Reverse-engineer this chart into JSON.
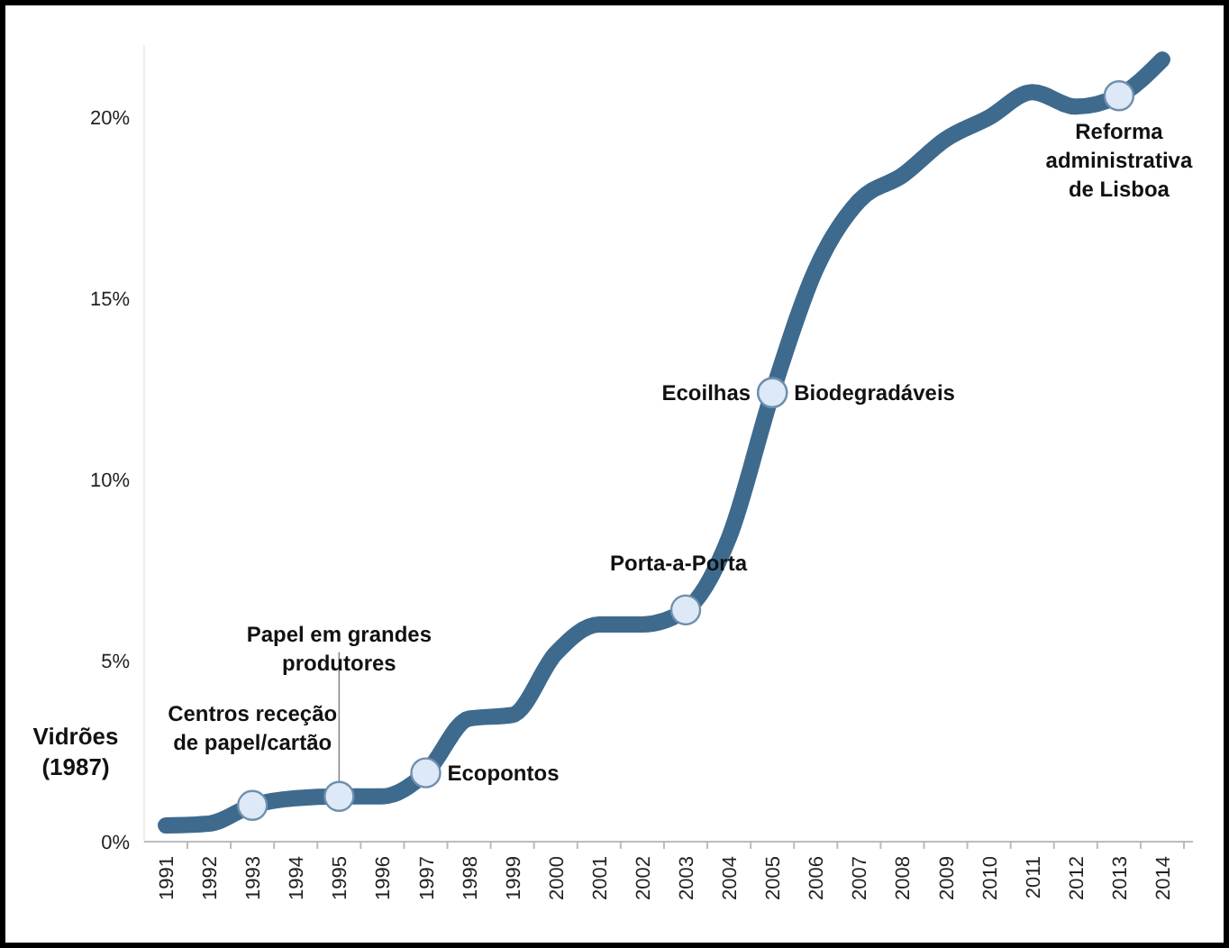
{
  "chart_data": {
    "type": "line",
    "categories": [
      "1991",
      "1992",
      "1993",
      "1994",
      "1995",
      "1996",
      "1997",
      "1998",
      "1999",
      "2000",
      "2001",
      "2002",
      "2003",
      "2004",
      "2005",
      "2006",
      "2007",
      "2008",
      "2009",
      "2010",
      "2011",
      "2012",
      "2013",
      "2014"
    ],
    "series": [
      {
        "color": "#3e6a8e",
        "values": [
          0.45,
          0.5,
          1.0,
          1.2,
          1.25,
          1.25,
          1.9,
          3.4,
          3.5,
          5.2,
          6.0,
          6.0,
          6.4,
          8.4,
          12.4,
          15.8,
          17.7,
          18.4,
          19.4,
          20.0,
          20.7,
          20.3,
          20.6,
          21.6
        ]
      }
    ],
    "ylim": [
      0,
      22
    ],
    "yticks": [
      {
        "value": 0,
        "label": "0%"
      },
      {
        "value": 5,
        "label": "5%"
      },
      {
        "value": 10,
        "label": "10%"
      },
      {
        "value": 15,
        "label": "15%"
      },
      {
        "value": 20,
        "label": "20%"
      }
    ],
    "line_style": "solid",
    "annotations": [
      "Vidrões\n(1987)",
      {
        "text": "Centros receção\nde papel/cartão",
        "x": "1993",
        "y": 1.0
      },
      {
        "text": "Papel em grandes\nprodutores",
        "x": "1995",
        "y": 1.25
      },
      {
        "text": "Ecopontos",
        "x": "1997",
        "y": 1.9
      },
      {
        "text": "Porta-a-Porta",
        "x": "2003",
        "y": 6.4
      },
      {
        "text": "Ecoilhas",
        "x": "2005",
        "y": 12.4
      },
      {
        "text": "Biodegradáveis",
        "x": "2005",
        "y": 12.4
      },
      {
        "text": "Reforma\nadministrativa\nde Lisboa",
        "x": "2013",
        "y": 20.6
      }
    ]
  }
}
